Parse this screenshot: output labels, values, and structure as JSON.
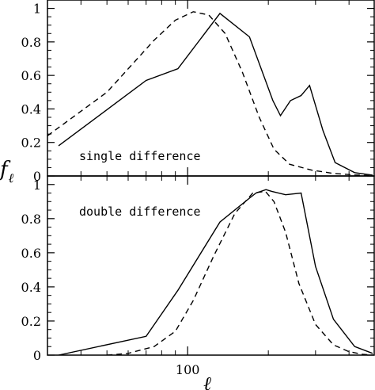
{
  "chart_data": [
    {
      "type": "line",
      "annotation": "single difference",
      "x_scale": "log",
      "xlim": [
        30,
        500
      ],
      "ylim": [
        0,
        1.05
      ],
      "yticks": [
        0,
        0.2,
        0.4,
        0.6,
        0.8,
        1
      ],
      "ytick_labels": [
        "0",
        "0.2",
        "0.4",
        "0.6",
        "0.8",
        "1"
      ],
      "series": [
        {
          "style": "solid",
          "x": [
            33,
            70,
            92,
            132,
            170,
            208,
            222,
            242,
            265,
            285,
            320,
            355,
            420,
            490
          ],
          "y": [
            0.18,
            0.57,
            0.64,
            0.97,
            0.83,
            0.45,
            0.36,
            0.45,
            0.48,
            0.54,
            0.27,
            0.08,
            0.02,
            0.005
          ]
        },
        {
          "style": "dashed",
          "x": [
            30,
            50,
            75,
            90,
            105,
            120,
            138,
            160,
            185,
            210,
            240,
            290,
            350,
            420,
            490
          ],
          "y": [
            0.24,
            0.5,
            0.81,
            0.93,
            0.98,
            0.96,
            0.85,
            0.62,
            0.35,
            0.16,
            0.07,
            0.035,
            0.015,
            0.006,
            0.002
          ]
        }
      ]
    },
    {
      "type": "line",
      "annotation": "double difference",
      "x_scale": "log",
      "xlim": [
        30,
        500
      ],
      "ylim": [
        0,
        1.05
      ],
      "yticks": [
        0,
        0.2,
        0.4,
        0.6,
        0.8,
        1
      ],
      "ytick_labels": [
        "0",
        "0.2",
        "0.4",
        "0.6",
        "0.8",
        "1"
      ],
      "xticks": [
        100
      ],
      "xtick_labels": [
        "100"
      ],
      "xlabel": "ℓ",
      "series": [
        {
          "style": "solid",
          "x": [
            33,
            70,
            92,
            132,
            170,
            180,
            196,
            206,
            232,
            265,
            300,
            350,
            420,
            490
          ],
          "y": [
            0.0,
            0.11,
            0.38,
            0.78,
            0.92,
            0.95,
            0.97,
            0.96,
            0.94,
            0.95,
            0.52,
            0.21,
            0.05,
            0.01
          ]
        },
        {
          "style": "dashed",
          "x": [
            50,
            60,
            75,
            90,
            105,
            125,
            150,
            175,
            195,
            210,
            232,
            260,
            300,
            350,
            400,
            450,
            490
          ],
          "y": [
            0.0,
            0.01,
            0.05,
            0.14,
            0.32,
            0.58,
            0.83,
            0.95,
            0.96,
            0.9,
            0.72,
            0.42,
            0.18,
            0.06,
            0.02,
            0.005,
            0.0
          ]
        }
      ]
    }
  ],
  "ylabel": "f",
  "ylabel_subscript": "ℓ"
}
